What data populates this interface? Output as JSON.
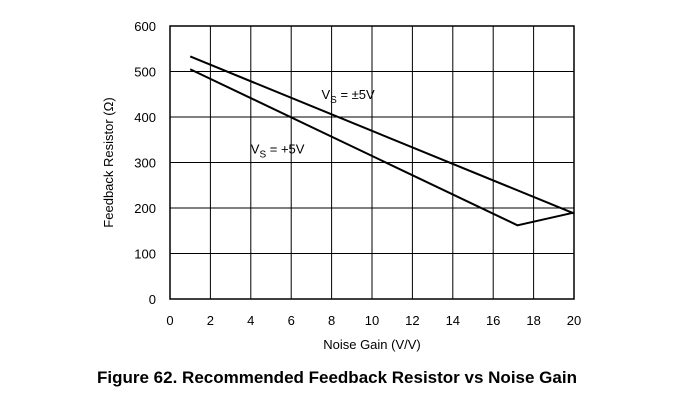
{
  "caption": "Figure 62.  Recommended Feedback Resistor vs Noise Gain",
  "chart_data": {
    "type": "line",
    "title": "",
    "xlabel": "Noise Gain (V/V)",
    "ylabel": "Feedback Resistor (Ω)",
    "xlim": [
      0,
      20
    ],
    "ylim": [
      0,
      600
    ],
    "xticks": [
      0,
      2,
      4,
      6,
      8,
      10,
      12,
      14,
      16,
      18,
      20
    ],
    "yticks": [
      0,
      100,
      200,
      300,
      400,
      500,
      600
    ],
    "grid": true,
    "legend": "none",
    "series": [
      {
        "key": "dual",
        "label": "±5V",
        "x": [
          1,
          20
        ],
        "y": [
          533,
          188
        ]
      },
      {
        "key": "single",
        "label": "+5V",
        "x": [
          1,
          17.2,
          20
        ],
        "y": [
          505,
          162,
          190
        ]
      }
    ],
    "annotations": [
      {
        "series": "dual",
        "prefix": "V",
        "subscript": "S",
        "text": " = ±5V",
        "x": 7.5,
        "y": 440
      },
      {
        "series": "single",
        "prefix": "V",
        "subscript": "S",
        "text": " = +5V",
        "x": 4,
        "y": 320
      }
    ]
  }
}
